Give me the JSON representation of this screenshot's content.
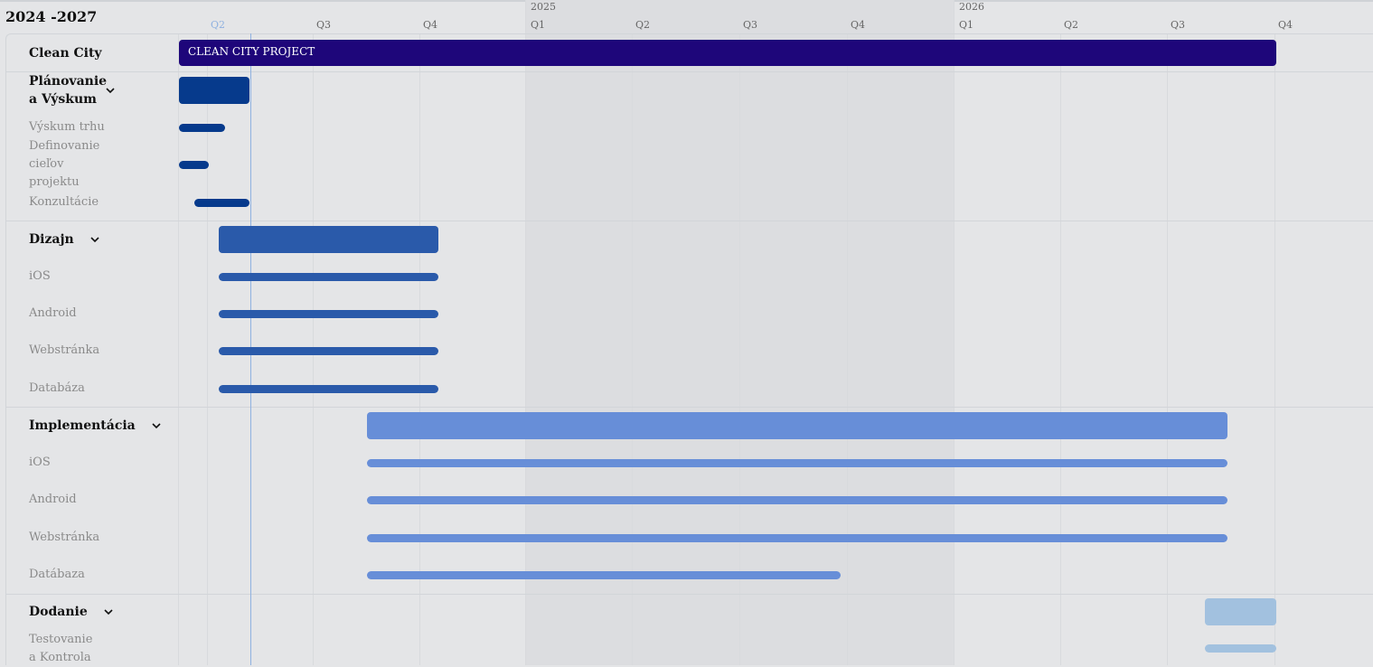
{
  "header": {
    "range_title": "2024 -2027",
    "years": [
      "2025",
      "2026"
    ],
    "quarters": [
      "Q2",
      "Q3",
      "Q4",
      "Q1",
      "Q2",
      "Q3",
      "Q4",
      "Q1",
      "Q2",
      "Q3",
      "Q4"
    ],
    "current_quarter_index": 0
  },
  "project": {
    "label": "Clean City",
    "bar_label": "CLEAN CITY PROJECT",
    "color": "#1e067a"
  },
  "groups": [
    {
      "label": "Plánovanie a Výskum",
      "expanded": true,
      "color": "#063a8c",
      "tasks": [
        "Výskum trhu",
        "Definovanie cieľov projektu",
        "Konzultácie"
      ]
    },
    {
      "label": "Dizajn",
      "expanded": true,
      "color": "#2a5aaa",
      "tasks": [
        "iOS",
        "Android",
        "Webstránka",
        "Databáza"
      ]
    },
    {
      "label": "Implementácia",
      "expanded": true,
      "color": "#678ed8",
      "tasks": [
        "iOS",
        "Android",
        "Webstránka",
        "Datábaza"
      ]
    },
    {
      "label": "Dodanie",
      "expanded": true,
      "color": "#a2c1df",
      "tasks": [
        "Testovanie a Kontrola"
      ]
    }
  ]
}
